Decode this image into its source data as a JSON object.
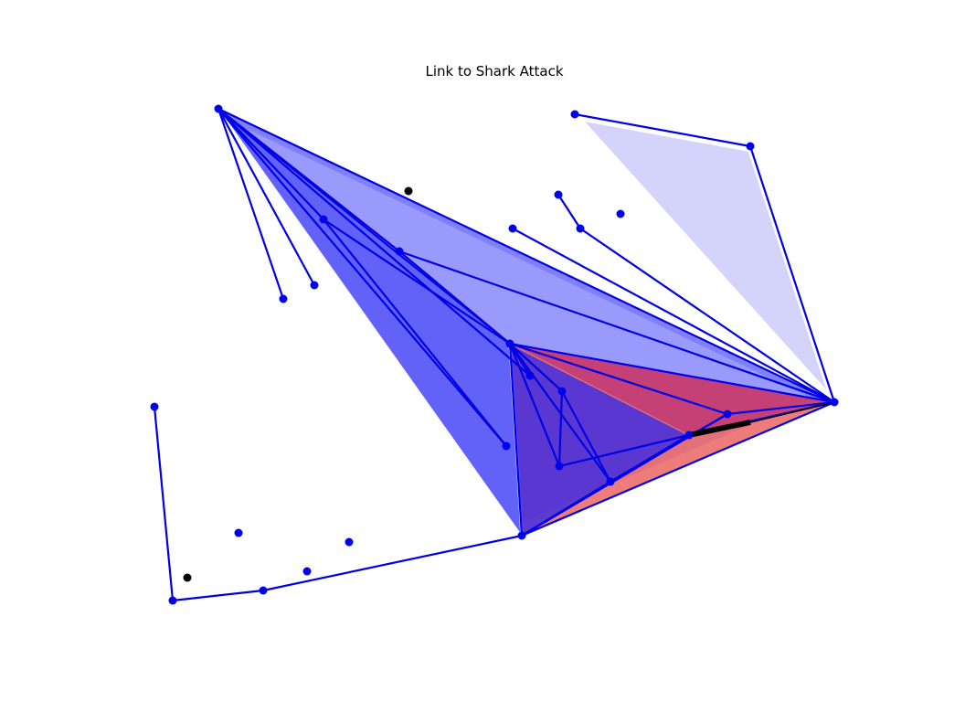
{
  "title": "Link to Shark Attack",
  "colors": {
    "background": "#ffffff",
    "edge": "#0000e6",
    "node": "#0000ee",
    "node_isolated_black": "#000000",
    "hull_blue_dark": "#2020f5",
    "hull_blue_mid": "#5555ff",
    "hull_blue_light": "#aeaefa",
    "hull_red": "#e8504f",
    "hull_purple": "#b02070",
    "highlight_link": "#000000",
    "title": "#000000"
  },
  "nodes": [
    {
      "id": "n1",
      "label": "",
      "color": "blue"
    },
    {
      "id": "n2",
      "label": "",
      "color": "blue"
    },
    {
      "id": "n3",
      "label": "",
      "color": "blue"
    },
    {
      "id": "n4",
      "label": "",
      "color": "blue"
    },
    {
      "id": "n5",
      "label": "",
      "color": "black"
    },
    {
      "id": "n6",
      "label": "",
      "color": "blue"
    },
    {
      "id": "n7",
      "label": "",
      "color": "blue"
    },
    {
      "id": "n8",
      "label": "",
      "color": "blue"
    },
    {
      "id": "n9",
      "label": "",
      "color": "blue"
    },
    {
      "id": "n10",
      "label": "",
      "color": "blue"
    },
    {
      "id": "n11",
      "label": "",
      "color": "blue"
    },
    {
      "id": "n12",
      "label": "",
      "color": "blue"
    },
    {
      "id": "n13",
      "label": "",
      "color": "blue"
    },
    {
      "id": "n14",
      "label": "",
      "color": "blue"
    },
    {
      "id": "n15",
      "label": "",
      "color": "blue"
    },
    {
      "id": "n16",
      "label": "",
      "color": "blue"
    },
    {
      "id": "n17",
      "label": "",
      "color": "blue"
    },
    {
      "id": "n18",
      "label": "",
      "color": "blue"
    },
    {
      "id": "n19",
      "label": "",
      "color": "blue"
    },
    {
      "id": "n20",
      "label": "",
      "color": "blue"
    },
    {
      "id": "n21",
      "label": "",
      "color": "blue"
    },
    {
      "id": "n22",
      "label": "",
      "color": "blue"
    },
    {
      "id": "n23",
      "label": "",
      "color": "blue"
    },
    {
      "id": "n24",
      "label": "",
      "color": "blue"
    },
    {
      "id": "n25",
      "label": "",
      "color": "blue"
    },
    {
      "id": "n26",
      "label": "",
      "color": "blue"
    },
    {
      "id": "n27",
      "label": "",
      "color": "black"
    },
    {
      "id": "n28",
      "label": "",
      "color": "blue"
    },
    {
      "id": "n29",
      "label": "",
      "color": "blue"
    }
  ],
  "edges": [
    [
      "n1",
      "n7"
    ],
    [
      "n1",
      "n8"
    ],
    [
      "n1",
      "n9"
    ],
    [
      "n1",
      "n10"
    ],
    [
      "n1",
      "n11"
    ],
    [
      "n1",
      "n12"
    ],
    [
      "n1",
      "n14"
    ],
    [
      "n1",
      "n21"
    ],
    [
      "n2",
      "n3"
    ],
    [
      "n3",
      "n21"
    ],
    [
      "n4",
      "n6"
    ],
    [
      "n6",
      "n21"
    ],
    [
      "n13",
      "n21"
    ],
    [
      "n9",
      "n11"
    ],
    [
      "n9",
      "n12"
    ],
    [
      "n10",
      "n11"
    ],
    [
      "n10",
      "n21"
    ],
    [
      "n11",
      "n14"
    ],
    [
      "n11",
      "n15"
    ],
    [
      "n11",
      "n16"
    ],
    [
      "n11",
      "n18"
    ],
    [
      "n11",
      "n19"
    ],
    [
      "n11",
      "n20"
    ],
    [
      "n11",
      "n21"
    ],
    [
      "n15",
      "n16"
    ],
    [
      "n16",
      "n17"
    ],
    [
      "n15",
      "n19"
    ],
    [
      "n19",
      "n17"
    ],
    [
      "n19",
      "n20"
    ],
    [
      "n19",
      "n18"
    ],
    [
      "n17",
      "n18"
    ],
    [
      "n17",
      "n21"
    ],
    [
      "n18",
      "n20"
    ],
    [
      "n18",
      "n21"
    ],
    [
      "n20",
      "n21"
    ],
    [
      "n22",
      "n23"
    ],
    [
      "n23",
      "n24"
    ],
    [
      "n24",
      "n18"
    ]
  ],
  "highlight_link": [
    "n17",
    "n22_marker"
  ],
  "hulls": [
    {
      "name": "",
      "color": "blue_light",
      "members": [
        "n2",
        "n3",
        "n21"
      ]
    },
    {
      "name": "",
      "color": "blue_mid",
      "members": [
        "n1",
        "n11",
        "n21"
      ]
    },
    {
      "name": "",
      "color": "blue_dark",
      "members": [
        "n1",
        "n11",
        "n18"
      ]
    },
    {
      "name": "",
      "color": "blue_light",
      "members": [
        "n1",
        "n11",
        "n18",
        "n21"
      ]
    },
    {
      "name": "",
      "color": "red",
      "members": [
        "n11",
        "n21",
        "n18"
      ]
    },
    {
      "name": "",
      "color": "purple",
      "members": [
        "n11",
        "n21",
        "n17"
      ]
    },
    {
      "name": "",
      "color": "blue_dark",
      "members": [
        "n11",
        "n17",
        "n18"
      ]
    }
  ]
}
